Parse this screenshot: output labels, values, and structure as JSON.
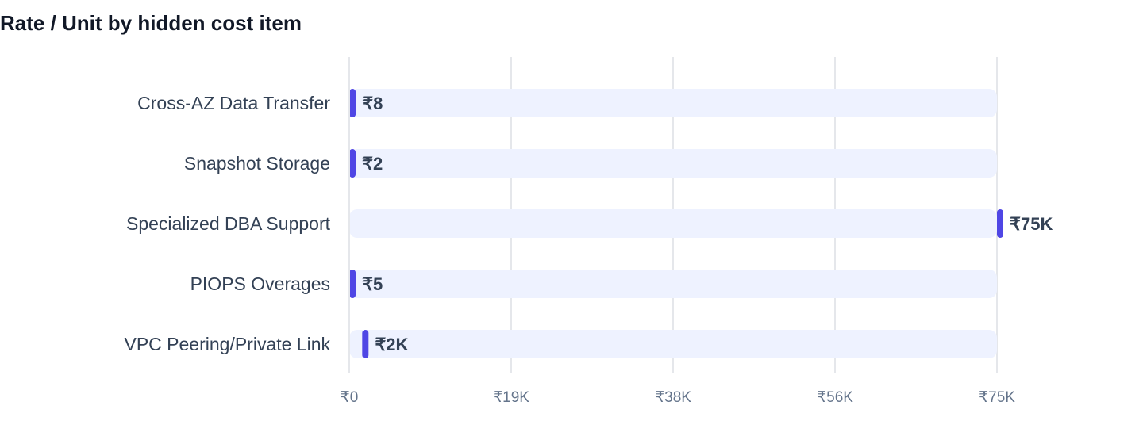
{
  "chart_data": {
    "type": "bar",
    "orientation": "horizontal",
    "title": "Rate / Unit by hidden cost item",
    "categories": [
      "Cross-AZ Data Transfer",
      "Snapshot Storage",
      "Specialized DBA Support",
      "PIOPS Overages",
      "VPC Peering/Private Link"
    ],
    "values": [
      8,
      2,
      75000,
      5,
      1500
    ],
    "value_labels": [
      "₹8",
      "₹2",
      "₹75K",
      "₹5",
      "₹2K"
    ],
    "xlim": [
      0,
      75000
    ],
    "x_ticks": [
      0,
      18750,
      37500,
      56250,
      75000
    ],
    "x_tick_labels": [
      "₹0",
      "₹19K",
      "₹38K",
      "₹56K",
      "₹75K"
    ],
    "xlabel": "",
    "ylabel": "",
    "grid": "vertical",
    "legend": "none",
    "colors": {
      "marker": "#4f46e5",
      "track": "#eef2ff",
      "grid": "#e5e7eb",
      "title": "#111827",
      "label": "#334155",
      "tick": "#64748b"
    }
  }
}
